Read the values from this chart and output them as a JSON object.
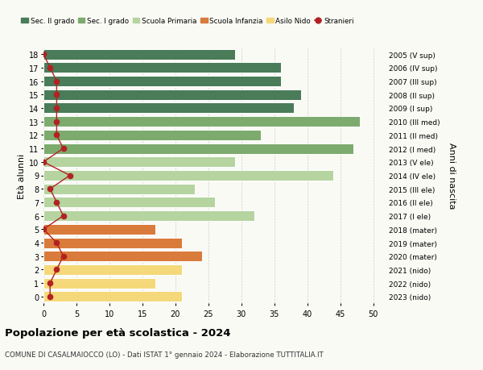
{
  "ages": [
    18,
    17,
    16,
    15,
    14,
    13,
    12,
    11,
    10,
    9,
    8,
    7,
    6,
    5,
    4,
    3,
    2,
    1,
    0
  ],
  "years": [
    "2005 (V sup)",
    "2006 (IV sup)",
    "2007 (III sup)",
    "2008 (II sup)",
    "2009 (I sup)",
    "2010 (III med)",
    "2011 (II med)",
    "2012 (I med)",
    "2013 (V ele)",
    "2014 (IV ele)",
    "2015 (III ele)",
    "2016 (II ele)",
    "2017 (I ele)",
    "2018 (mater)",
    "2019 (mater)",
    "2020 (mater)",
    "2021 (nido)",
    "2022 (nido)",
    "2023 (nido)"
  ],
  "bar_values": [
    29,
    36,
    36,
    39,
    38,
    48,
    33,
    47,
    29,
    44,
    23,
    26,
    32,
    17,
    21,
    24,
    21,
    17,
    21
  ],
  "stranieri": [
    0,
    1,
    2,
    2,
    2,
    2,
    2,
    3,
    0,
    4,
    1,
    2,
    3,
    0,
    2,
    3,
    2,
    1,
    1
  ],
  "bar_colors": [
    "#4a7c59",
    "#4a7c59",
    "#4a7c59",
    "#4a7c59",
    "#4a7c59",
    "#7dab6e",
    "#7dab6e",
    "#7dab6e",
    "#b5d4a0",
    "#b5d4a0",
    "#b5d4a0",
    "#b5d4a0",
    "#b5d4a0",
    "#d97b3b",
    "#d97b3b",
    "#d97b3b",
    "#f5d87a",
    "#f5d87a",
    "#f5d87a"
  ],
  "legend_colors": [
    "#4a7c59",
    "#7dab6e",
    "#b5d4a0",
    "#d97b3b",
    "#f5d87a",
    "#b22222"
  ],
  "legend_labels": [
    "Sec. II grado",
    "Sec. I grado",
    "Scuola Primaria",
    "Scuola Infanzia",
    "Asilo Nido",
    "Stranieri"
  ],
  "title": "Popolazione per età scolastica - 2024",
  "subtitle": "COMUNE DI CASALMAIOCCO (LO) - Dati ISTAT 1° gennaio 2024 - Elaborazione TUTTITALIA.IT",
  "ylabel_left": "Età alunni",
  "ylabel_right": "Anni di nascita",
  "xlim": [
    0,
    52
  ],
  "bg_color": "#fafaf5",
  "bar_height": 0.78
}
